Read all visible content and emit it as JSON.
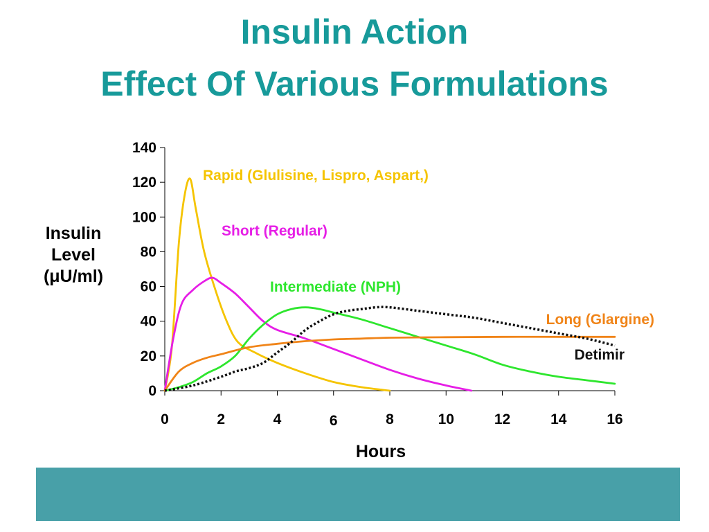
{
  "title_line1": "Insulin Action",
  "title_line2": "Effect Of Various Formulations",
  "colors": {
    "title": "#179a9a",
    "footer": "#48a0a8"
  },
  "chart_data": {
    "type": "line",
    "ylabel_lines": [
      "Insulin",
      "Level",
      "(μU/ml)"
    ],
    "xlabel": "Hours",
    "xlim": [
      0,
      16
    ],
    "ylim": [
      0,
      140
    ],
    "x_ticks": [
      "0",
      "2",
      "4",
      "6",
      "8",
      "10",
      "12",
      "14",
      "16"
    ],
    "y_ticks": [
      "0",
      "20",
      "40",
      "60",
      "80",
      "100",
      "120",
      "140"
    ],
    "grid": false,
    "series": [
      {
        "name": "Rapid (Glulisine, Lispro, Aspart,)",
        "color": "#f5c400",
        "style": "solid",
        "x": [
          0,
          0.25,
          0.5,
          0.7,
          0.9,
          1.1,
          1.4,
          1.8,
          2.2,
          2.6,
          3.2,
          4,
          5,
          6,
          7,
          8
        ],
        "y": [
          0,
          25,
          85,
          112,
          122,
          105,
          80,
          58,
          40,
          28,
          22,
          16,
          10,
          5,
          2,
          0
        ]
      },
      {
        "name": "Short (Regular)",
        "color": "#e61ee6",
        "style": "solid",
        "x": [
          0,
          0.3,
          0.6,
          1,
          1.4,
          1.7,
          2,
          2.5,
          3,
          3.5,
          4,
          5,
          6,
          7,
          8,
          9,
          10,
          10.9
        ],
        "y": [
          0,
          30,
          50,
          58,
          63,
          65,
          62,
          56,
          48,
          40,
          35,
          30,
          24,
          18,
          12,
          7,
          3,
          0
        ]
      },
      {
        "name": "Intermediate (NPH)",
        "color": "#2ee62e",
        "style": "solid",
        "x": [
          0,
          0.5,
          1,
          1.5,
          2,
          2.5,
          3,
          3.5,
          4,
          4.5,
          5,
          5.5,
          6,
          7,
          8,
          9,
          10,
          11,
          12,
          13,
          14,
          15,
          16
        ],
        "y": [
          0,
          2,
          5,
          10,
          14,
          20,
          30,
          38,
          44,
          47,
          48,
          47,
          45,
          41,
          36,
          31,
          26,
          21,
          15,
          11,
          8,
          6,
          4
        ]
      },
      {
        "name": "Long (Glargine)",
        "color": "#f08418",
        "style": "solid",
        "x": [
          0,
          0.5,
          1,
          1.5,
          2,
          3,
          4,
          5,
          6,
          7,
          8,
          10,
          12,
          14,
          16
        ],
        "y": [
          0,
          11,
          16,
          19,
          21,
          25,
          27,
          28.5,
          29.5,
          30,
          30.5,
          30.8,
          31,
          31,
          31
        ]
      },
      {
        "name": "Detimir",
        "color": "#111111",
        "style": "dotted",
        "x": [
          0,
          1,
          2,
          2.5,
          3,
          3.5,
          4,
          4.5,
          5,
          5.5,
          6,
          6.5,
          7,
          7.5,
          8,
          9,
          10,
          11,
          12,
          13,
          14,
          15,
          16
        ],
        "y": [
          0,
          3,
          8,
          11,
          13,
          16,
          22,
          28,
          35,
          40,
          44,
          46,
          47,
          48,
          48,
          46,
          44,
          42,
          39,
          36,
          33,
          30,
          26
        ]
      }
    ]
  }
}
